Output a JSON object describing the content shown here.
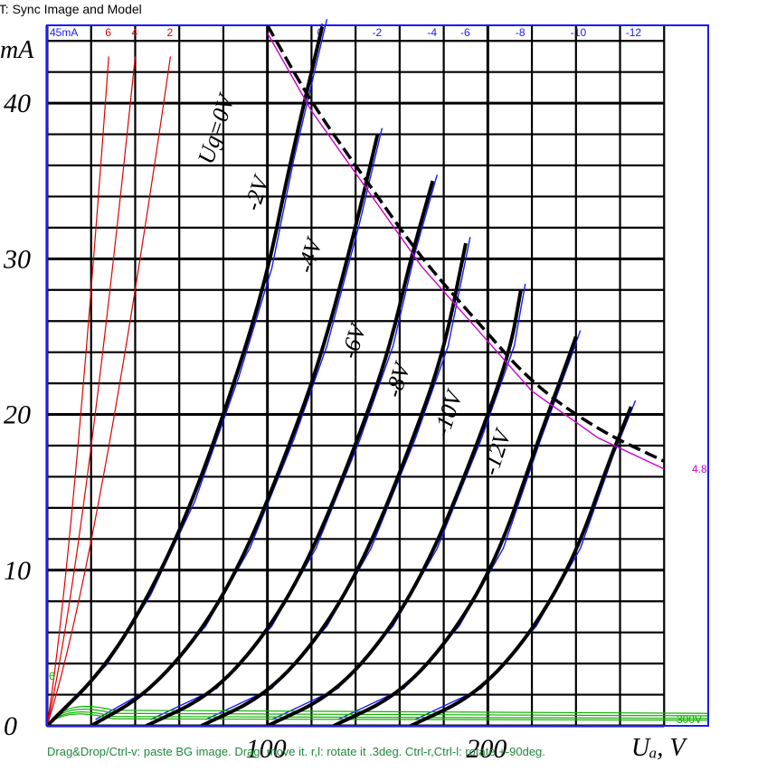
{
  "window": {
    "title": "nt KIT: Sync Image and Model"
  },
  "overlay": {
    "hint": "Drag&Drop/Ctrl-v: paste BG image. Drag: move it. r,l: rotate it .3deg. Ctrl-r,Ctrl-l: rotate +-90deg.",
    "top_left_label": "45mA",
    "bottom_right_label": "300V",
    "right_label_magenta": "4.8",
    "colors": {
      "frame": "#1a1aff",
      "blue": "#1a1aff",
      "red": "#e00000",
      "green": "#10b000",
      "magenta": "#d000d0"
    },
    "red_grid_labels": [
      "6",
      "4",
      "2"
    ],
    "blue_grid_labels": [
      "0",
      "-2",
      "-4",
      "-6",
      "-8",
      "-10",
      "-12"
    ],
    "green_label": "6"
  },
  "chart_data": {
    "type": "line",
    "title": "",
    "xlabel": "Uₐ, V",
    "ylabel": "mA",
    "xlim": [
      0,
      300
    ],
    "ylim": [
      0,
      45
    ],
    "x_ticks": [
      100,
      200
    ],
    "y_ticks": [
      0,
      10,
      20,
      30,
      40
    ],
    "x_tick_labels": [
      "100",
      "200"
    ],
    "y_tick_labels": [
      "0",
      "10",
      "20",
      "30",
      "40"
    ],
    "grid": true,
    "series": [
      {
        "name": "Ug=0V",
        "points": [
          [
            0,
            0
          ],
          [
            25,
            3.5
          ],
          [
            45,
            8
          ],
          [
            65,
            14
          ],
          [
            85,
            22
          ],
          [
            100,
            29
          ],
          [
            110,
            36
          ],
          [
            125,
            45
          ]
        ]
      },
      {
        "name": "-2V",
        "points": [
          [
            20,
            0
          ],
          [
            45,
            2
          ],
          [
            70,
            6
          ],
          [
            90,
            11
          ],
          [
            110,
            18
          ],
          [
            125,
            24
          ],
          [
            140,
            32
          ],
          [
            150,
            38
          ]
        ]
      },
      {
        "name": "-4V",
        "points": [
          [
            45,
            0
          ],
          [
            75,
            2
          ],
          [
            100,
            6
          ],
          [
            120,
            11
          ],
          [
            140,
            18
          ],
          [
            155,
            24
          ],
          [
            165,
            30
          ],
          [
            175,
            35
          ]
        ]
      },
      {
        "name": "-6V",
        "points": [
          [
            70,
            0
          ],
          [
            100,
            2
          ],
          [
            125,
            6
          ],
          [
            145,
            11
          ],
          [
            165,
            18
          ],
          [
            180,
            24
          ],
          [
            190,
            31
          ]
        ]
      },
      {
        "name": "-8V",
        "points": [
          [
            100,
            0
          ],
          [
            130,
            2
          ],
          [
            155,
            6
          ],
          [
            175,
            11
          ],
          [
            195,
            18
          ],
          [
            210,
            24
          ],
          [
            215,
            28
          ]
        ]
      },
      {
        "name": "-10V",
        "points": [
          [
            130,
            0
          ],
          [
            160,
            2
          ],
          [
            185,
            6
          ],
          [
            205,
            11
          ],
          [
            222,
            18
          ],
          [
            235,
            23
          ],
          [
            240,
            25
          ]
        ]
      },
      {
        "name": "-12V",
        "points": [
          [
            165,
            0
          ],
          [
            195,
            2
          ],
          [
            220,
            6
          ],
          [
            240,
            11
          ],
          [
            255,
            17
          ],
          [
            265,
            20.5
          ]
        ]
      },
      {
        "name": "",
        "points": [
          [
            100,
            45
          ],
          [
            120,
            40
          ],
          [
            145,
            35
          ],
          [
            170,
            30
          ],
          [
            195,
            26
          ],
          [
            220,
            22
          ],
          [
            250,
            19
          ],
          [
            280,
            17
          ]
        ]
      }
    ]
  }
}
